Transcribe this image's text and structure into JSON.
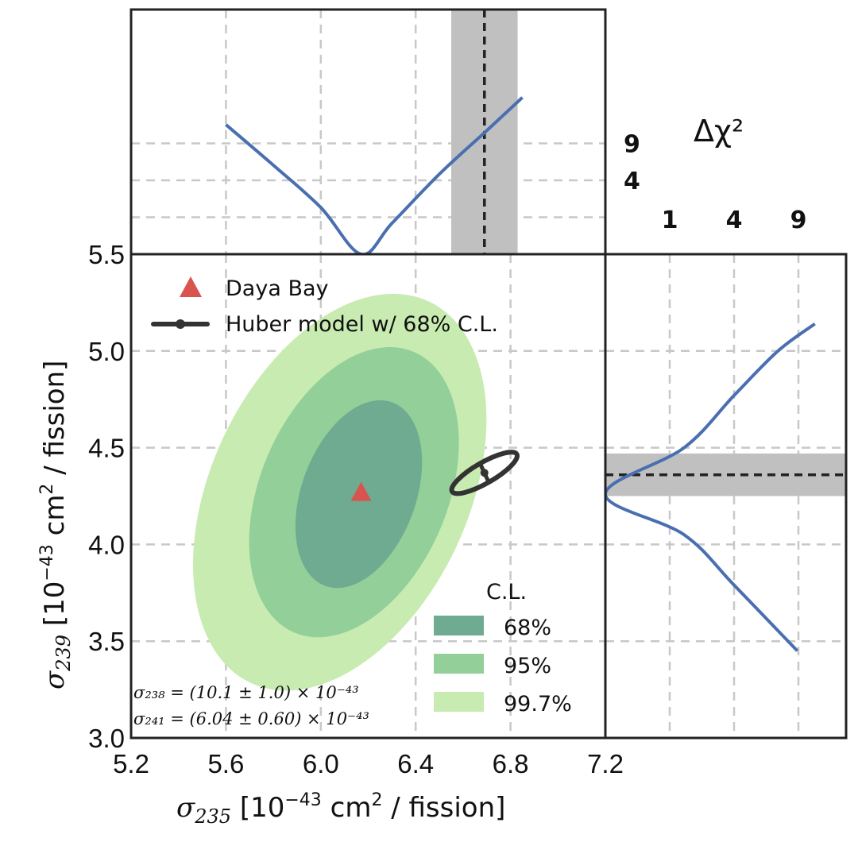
{
  "chart_data": [
    {
      "type": "contour",
      "panel": "main",
      "xlabel_symbol": "σ",
      "xlabel_sub": "235",
      "xlabel_unit_pre": " [10",
      "xlabel_unit_exp": "−43",
      "xlabel_unit_mid": " cm",
      "xlabel_unit_sq": "2",
      "xlabel_unit_post": " / fission]",
      "ylabel_symbol": "σ",
      "ylabel_sub": "239",
      "ylabel_unit_pre": " [10",
      "ylabel_unit_exp": "−43",
      "ylabel_unit_mid": " cm",
      "ylabel_unit_sq": "2",
      "ylabel_unit_post": " / fission]",
      "xlim": [
        5.2,
        7.2
      ],
      "ylim": [
        3.0,
        5.5
      ],
      "xticks": [
        5.2,
        5.6,
        6.0,
        6.4,
        6.8,
        7.2
      ],
      "xtick_labels": [
        "5.2",
        "5.6",
        "6.0",
        "6.4",
        "6.8",
        "7.2"
      ],
      "yticks": [
        3.0,
        3.5,
        4.0,
        4.5,
        5.0,
        5.5
      ],
      "ytick_labels": [
        "3.0",
        "3.5",
        "4.0",
        "4.5",
        "5.0",
        "5.5"
      ],
      "grid": true,
      "daya_bay": {
        "label": "Daya Bay",
        "x": 6.17,
        "y": 4.27,
        "color": "#d9534f"
      },
      "huber": {
        "label": "Huber model w/ 68% C.L.",
        "x": 6.69,
        "y": 4.37,
        "color": "#333333"
      },
      "contours": [
        {
          "label": "99.7%",
          "center": [
            6.08,
            4.27
          ],
          "color": "#c7ebb0"
        },
        {
          "label": "95%",
          "center": [
            6.14,
            4.27
          ],
          "color": "#93cf98"
        },
        {
          "label": "68%",
          "center": [
            6.16,
            4.26
          ],
          "color": "#6fab91"
        }
      ],
      "legend_title": "C.L.",
      "legend_position": "lower-right",
      "annotation_line1": "σ₂₃₈ = (10.1 ± 1.0) × 10⁻⁴³",
      "annotation_line2": "σ₂₄₁ = (6.04 ± 0.60) × 10⁻⁴³"
    },
    {
      "type": "line",
      "panel": "top",
      "ylabel": "Δχ²",
      "yticks": [
        1,
        4,
        9
      ],
      "ytick_labels": [
        "1",
        "4",
        "9"
      ],
      "xlim": [
        5.2,
        7.2
      ],
      "series": [
        {
          "x": [
            5.6,
            5.8,
            6.0,
            6.17,
            6.3,
            6.5,
            6.7,
            6.85
          ],
          "y": [
            12.3,
            5.8,
            1.6,
            0.0,
            0.7,
            4.7,
            11.2,
            18.0
          ],
          "color": "#4a6fb0"
        }
      ],
      "band": {
        "x_center": 6.69,
        "x_low": 6.55,
        "x_high": 6.83,
        "color": "#c0c0c0"
      }
    },
    {
      "type": "line",
      "panel": "right",
      "xlabel": "Δχ²",
      "xticks": [
        1,
        4,
        9
      ],
      "xtick_labels": [
        "1",
        "4",
        "9"
      ],
      "ylim": [
        3.0,
        5.5
      ],
      "series": [
        {
          "x": [
            8.9,
            4.0,
            1.5,
            0.0,
            1.5,
            4.0,
            7.2,
            10.6
          ],
          "y": [
            3.45,
            3.79,
            4.05,
            4.26,
            4.5,
            4.77,
            5.0,
            5.14
          ],
          "color": "#4a6fb0"
        }
      ],
      "band": {
        "y_center": 4.36,
        "y_low": 4.25,
        "y_high": 4.47,
        "color": "#c0c0c0"
      }
    }
  ]
}
